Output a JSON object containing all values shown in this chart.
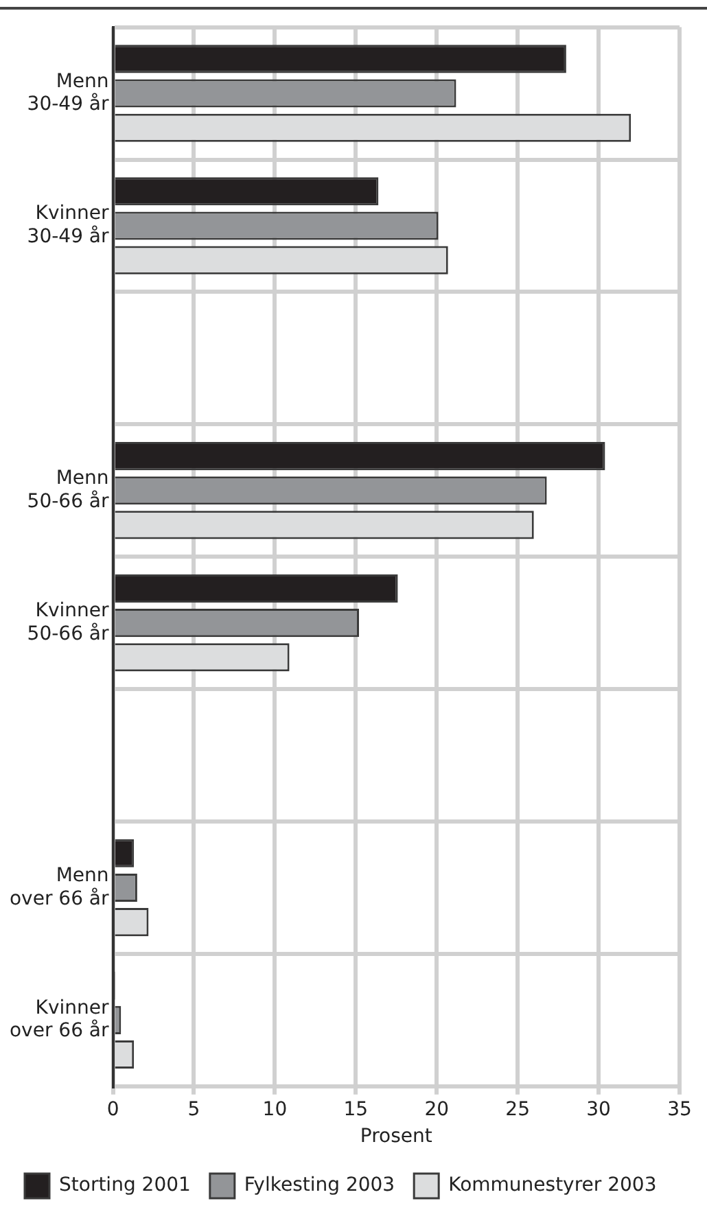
{
  "chart_data": {
    "type": "bar",
    "orientation": "horizontal",
    "xlabel": "Prosent",
    "categories": [
      "Menn\n30-49 år",
      "Kvinner\n30-49 år",
      null,
      "Menn\n50-66 år",
      "Kvinner\n50-66 år",
      null,
      "Menn\nover 66 år",
      "Kvinner\nover 66 år"
    ],
    "series": [
      {
        "name": "Storting 2001",
        "color": "#231f20",
        "values": [
          28.0,
          16.4,
          null,
          30.4,
          17.6,
          null,
          1.3,
          0.1
        ]
      },
      {
        "name": "Fylkesting 2003",
        "color": "#939598",
        "values": [
          21.2,
          20.1,
          null,
          26.8,
          15.2,
          null,
          1.5,
          0.5
        ]
      },
      {
        "name": "Kommunestyrer 2003",
        "color": "#dcddde",
        "values": [
          32.0,
          20.7,
          null,
          26.0,
          10.9,
          null,
          2.2,
          1.3
        ]
      }
    ],
    "xlim": [
      0,
      35
    ],
    "xticks": [
      0,
      5,
      10,
      15,
      20,
      25,
      30,
      35
    ],
    "grid": true,
    "legend": "bottom"
  }
}
